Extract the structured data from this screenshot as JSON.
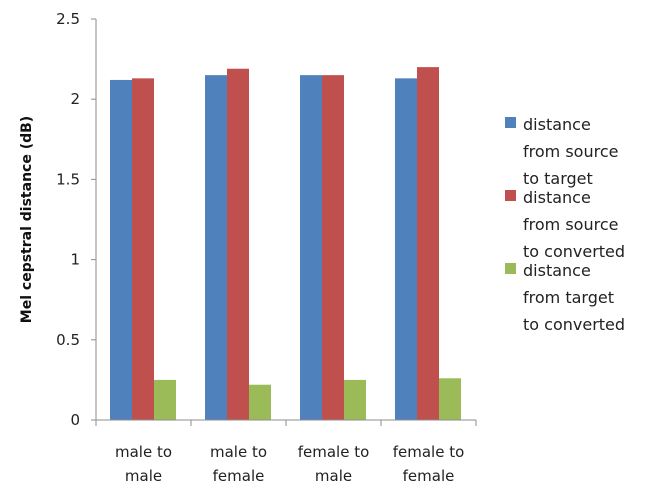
{
  "chart_data": {
    "type": "bar",
    "categories": [
      [
        "male to",
        "male"
      ],
      [
        "male to",
        "female"
      ],
      [
        "female to",
        "male"
      ],
      [
        "female to",
        "female"
      ]
    ],
    "series": [
      {
        "name": [
          "distance",
          "from source",
          "to target"
        ],
        "color": "#4f81bd",
        "values": [
          2.12,
          2.15,
          2.15,
          2.13
        ]
      },
      {
        "name": [
          "distance",
          "from source",
          "to converted"
        ],
        "color": "#c0504d",
        "values": [
          2.13,
          2.19,
          2.15,
          2.2
        ]
      },
      {
        "name": [
          "distance",
          "from target",
          "to converted"
        ],
        "color": "#9bbb59",
        "values": [
          0.25,
          0.22,
          0.25,
          0.26
        ]
      }
    ],
    "ylabel": "Mel cepstral distance (dB)",
    "ylim": [
      0,
      2.5
    ],
    "yticks": [
      "0",
      "0.5",
      "1",
      "1.5",
      "2",
      "2.5"
    ],
    "grid": false,
    "legend": "right"
  }
}
